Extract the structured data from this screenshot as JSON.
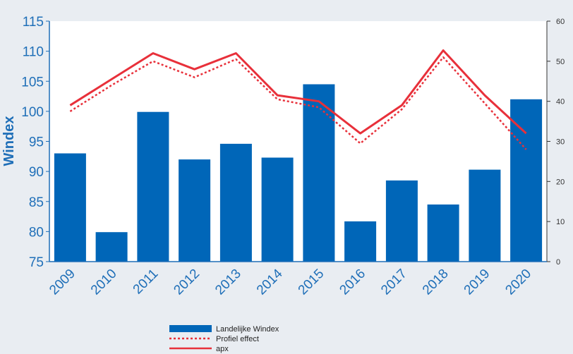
{
  "chart_data": {
    "type": "bar",
    "categories": [
      "2009",
      "2010",
      "2011",
      "2012",
      "2013",
      "2014",
      "2015",
      "2016",
      "2017",
      "2018",
      "2019",
      "2020"
    ],
    "ylabel": "Windex",
    "ylim": [
      75,
      115
    ],
    "y_ticks": [
      75,
      80,
      85,
      90,
      95,
      100,
      105,
      110,
      115
    ],
    "y2lim": [
      0,
      60
    ],
    "y2_ticks": [
      0,
      10,
      20,
      30,
      40,
      50,
      60
    ],
    "grid": false,
    "legend_position": "bottom-center",
    "series": [
      {
        "name": "Landelijke Windex",
        "type": "bar",
        "axis": "left",
        "color": "#0066b8",
        "values": [
          93,
          79.9,
          99.9,
          92,
          94.6,
          92.3,
          104.5,
          81.7,
          88.5,
          84.5,
          90.3,
          102
        ]
      },
      {
        "name": "Profiel effect",
        "type": "line",
        "style": "dotted",
        "axis": "right",
        "color": "#e8303a",
        "values": [
          37.5,
          44,
          50,
          46,
          50.5,
          40.5,
          38.5,
          29.5,
          38,
          51,
          39.5,
          28
        ]
      },
      {
        "name": "apx",
        "type": "line",
        "style": "solid",
        "axis": "right",
        "color": "#e8303a",
        "values": [
          39,
          45.5,
          52,
          48,
          52,
          41.5,
          40,
          32,
          39,
          52.7,
          41.5,
          32
        ]
      }
    ]
  }
}
